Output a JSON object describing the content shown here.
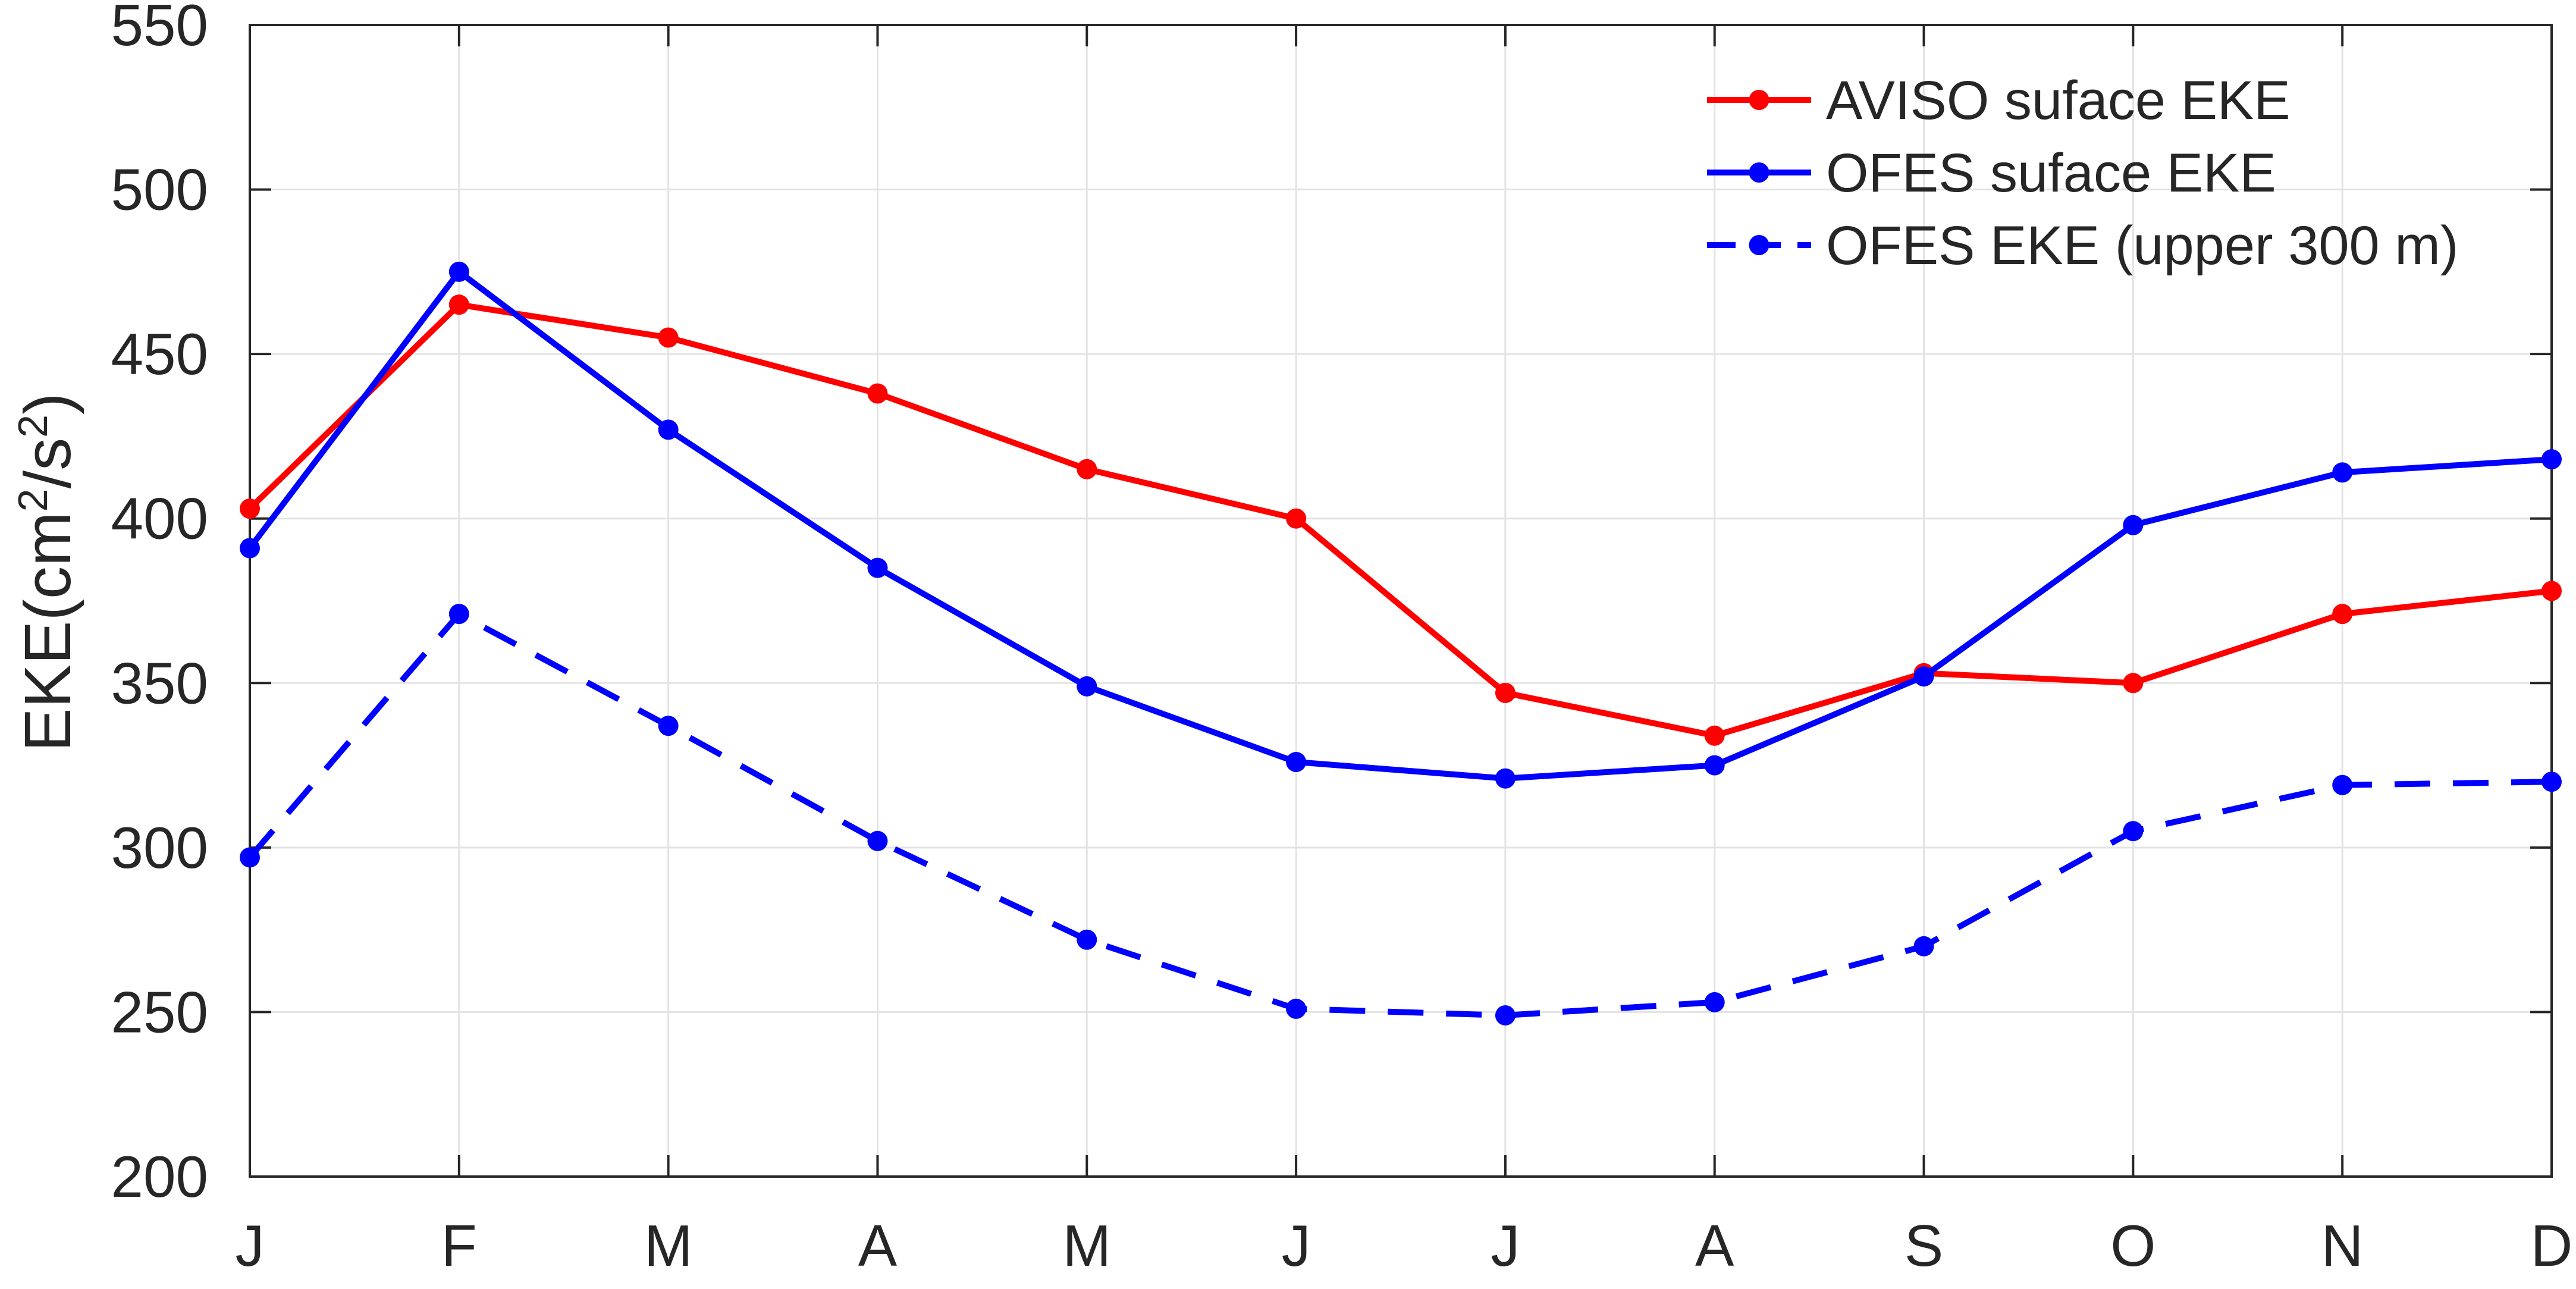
{
  "chart_data": {
    "type": "line",
    "title": "",
    "xlabel": "",
    "ylabel": "EKE(cm²/s²)",
    "categories": [
      "J",
      "F",
      "M",
      "A",
      "M",
      "J",
      "J",
      "A",
      "S",
      "O",
      "N",
      "D"
    ],
    "ylim": [
      200,
      550
    ],
    "yticks": [
      200,
      250,
      300,
      350,
      400,
      450,
      500,
      550
    ],
    "grid": true,
    "legend_position": "top-right",
    "series": [
      {
        "name": "AVISO suface EKE",
        "color": "#ff0000",
        "line_style": "solid",
        "marker": "circle",
        "values": [
          403,
          465,
          455,
          438,
          415,
          400,
          347,
          334,
          353,
          350,
          371,
          378
        ]
      },
      {
        "name": "OFES suface EKE",
        "color": "#0000ff",
        "line_style": "solid",
        "marker": "circle",
        "values": [
          391,
          475,
          427,
          385,
          349,
          326,
          321,
          325,
          352,
          398,
          414,
          418
        ]
      },
      {
        "name": "OFES EKE (upper 300 m)",
        "color": "#0000ff",
        "line_style": "dashed",
        "marker": "circle",
        "values": [
          297,
          371,
          337,
          302,
          272,
          251,
          249,
          253,
          270,
          305,
          319,
          320
        ]
      }
    ]
  }
}
